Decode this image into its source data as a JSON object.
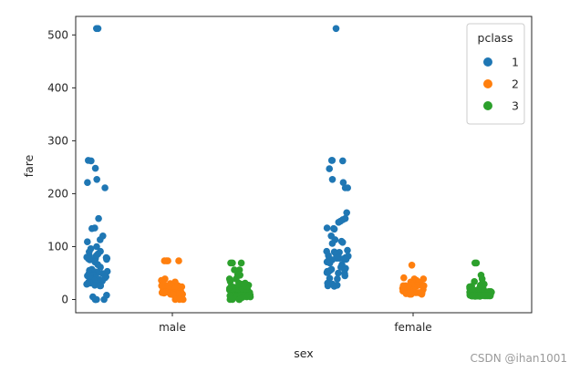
{
  "chart_data": {
    "type": "scatter",
    "subtype": "stripplot",
    "title": "",
    "xlabel": "sex",
    "ylabel": "fare",
    "categories": [
      "male",
      "female"
    ],
    "ylim": [
      -25,
      535
    ],
    "yticks": [
      0,
      100,
      200,
      300,
      400,
      500
    ],
    "grid": false,
    "legend": {
      "title": "pclass",
      "placement": "top-right"
    },
    "series": [
      {
        "name": "1",
        "color": "#1f77b4",
        "points": {
          "male": [
            512,
            512,
            263,
            262,
            248,
            227,
            221,
            211,
            153,
            135,
            134,
            120,
            113,
            109,
            100,
            96,
            91,
            90,
            86,
            83,
            82,
            80,
            79,
            78,
            77,
            77,
            76,
            75,
            71,
            66,
            61,
            57,
            55,
            53,
            52,
            52,
            51,
            50,
            50,
            49,
            47,
            46,
            45,
            43,
            42,
            41,
            40,
            39,
            38,
            36,
            35,
            34,
            33,
            31,
            30,
            30,
            29,
            27,
            26,
            26,
            8,
            5,
            0,
            0,
            0,
            0,
            0
          ],
          "female": [
            512,
            263,
            263,
            262,
            247,
            227,
            221,
            211,
            211,
            164,
            153,
            151,
            148,
            146,
            135,
            134,
            133,
            120,
            113,
            110,
            108,
            106,
            93,
            91,
            90,
            89,
            86,
            83,
            82,
            80,
            79,
            78,
            78,
            77,
            77,
            76,
            75,
            71,
            69,
            66,
            63,
            61,
            59,
            57,
            56,
            55,
            53,
            52,
            51,
            50,
            49,
            45,
            40,
            39,
            31,
            29,
            27,
            26,
            25
          ]
        }
      },
      {
        "name": "2",
        "color": "#ff7f0e",
        "points": {
          "male": [
            73,
            73,
            73,
            73,
            39,
            36,
            33,
            31,
            30,
            29,
            27,
            26,
            26,
            26,
            26,
            26,
            26,
            24,
            23,
            21,
            21,
            19,
            18,
            16,
            15,
            15,
            14,
            14,
            13,
            13,
            13,
            13,
            13,
            13,
            13,
            13,
            12,
            12,
            12,
            11,
            11,
            10,
            10,
            10,
            10,
            10,
            10,
            10,
            10,
            10,
            9,
            0,
            0,
            0
          ],
          "female": [
            65,
            41,
            39,
            39,
            36,
            33,
            33,
            32,
            30,
            29,
            27,
            27,
            26,
            26,
            26,
            26,
            26,
            26,
            26,
            24,
            23,
            23,
            21,
            21,
            19,
            18,
            16,
            15,
            14,
            13,
            13,
            13,
            13,
            13,
            13,
            12,
            12,
            11,
            10,
            10,
            10
          ]
        }
      },
      {
        "name": "3",
        "color": "#2ca02c",
        "points": {
          "male": [
            69,
            69,
            69,
            56,
            56,
            47,
            46,
            39,
            39,
            34,
            31,
            31,
            29,
            27,
            25,
            24,
            23,
            22,
            21,
            21,
            20,
            19,
            18,
            17,
            16,
            16,
            15,
            15,
            15,
            14,
            14,
            14,
            13,
            13,
            12,
            12,
            11,
            10,
            10,
            10,
            9,
            9,
            9,
            9,
            9,
            9,
            8,
            8,
            8,
            8,
            8,
            8,
            8,
            8,
            8,
            8,
            8,
            8,
            8,
            8,
            8,
            8,
            8,
            8,
            7,
            7,
            7,
            7,
            7,
            7,
            7,
            7,
            7,
            7,
            7,
            7,
            7,
            7,
            7,
            7,
            7,
            7,
            7,
            7,
            6,
            6,
            5,
            5,
            4,
            4,
            0,
            0,
            0,
            0
          ],
          "female": [
            69,
            69,
            46,
            39,
            34,
            31,
            29,
            27,
            25,
            24,
            23,
            22,
            21,
            20,
            19,
            18,
            17,
            16,
            16,
            15,
            15,
            15,
            14,
            14,
            14,
            13,
            12,
            12,
            12,
            11,
            10,
            10,
            9,
            9,
            9,
            9,
            9,
            8,
            8,
            8,
            8,
            8,
            8,
            8,
            8,
            8,
            8,
            8,
            8,
            8,
            7,
            7,
            7,
            7,
            7,
            7,
            7,
            7,
            7,
            7,
            7,
            7,
            7,
            7,
            7,
            7,
            7,
            7,
            7,
            6,
            6
          ]
        }
      }
    ]
  },
  "watermark": "CSDN @ihan1001"
}
